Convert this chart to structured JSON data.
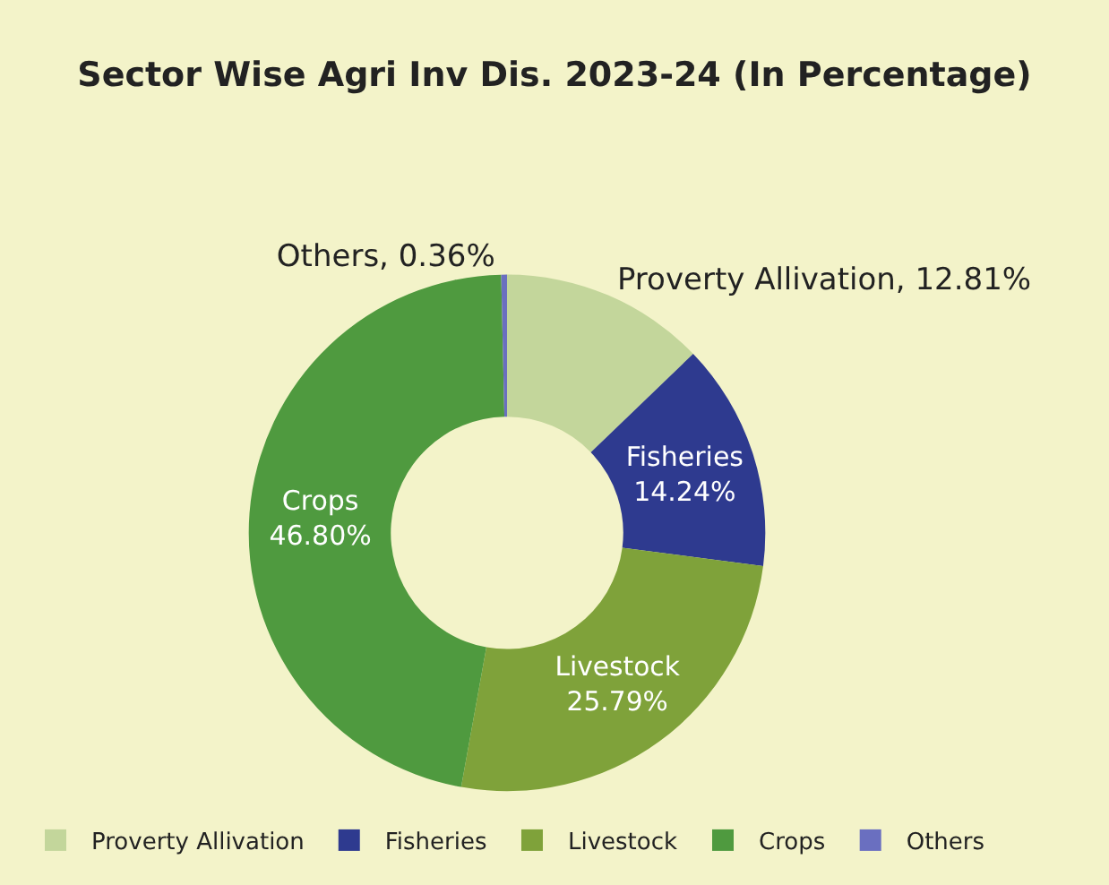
{
  "chart_data": {
    "type": "donut",
    "title": "Sector Wise Agri Inv Dis. 2023-24 (In Percentage)",
    "categories": [
      "Proverty Allivation",
      "Fisheries",
      "Livestock",
      "Crops",
      "Others"
    ],
    "values": [
      12.81,
      14.24,
      25.79,
      46.8,
      0.36
    ],
    "colors": [
      "#c3d69b",
      "#2e3a8f",
      "#7fa23a",
      "#4f9a3f",
      "#6a6fc0"
    ],
    "value_labels": [
      ", 12.81%",
      "14.24%",
      "25.79%",
      "46.80%",
      ", 0.36%"
    ],
    "legend": "bottom"
  }
}
